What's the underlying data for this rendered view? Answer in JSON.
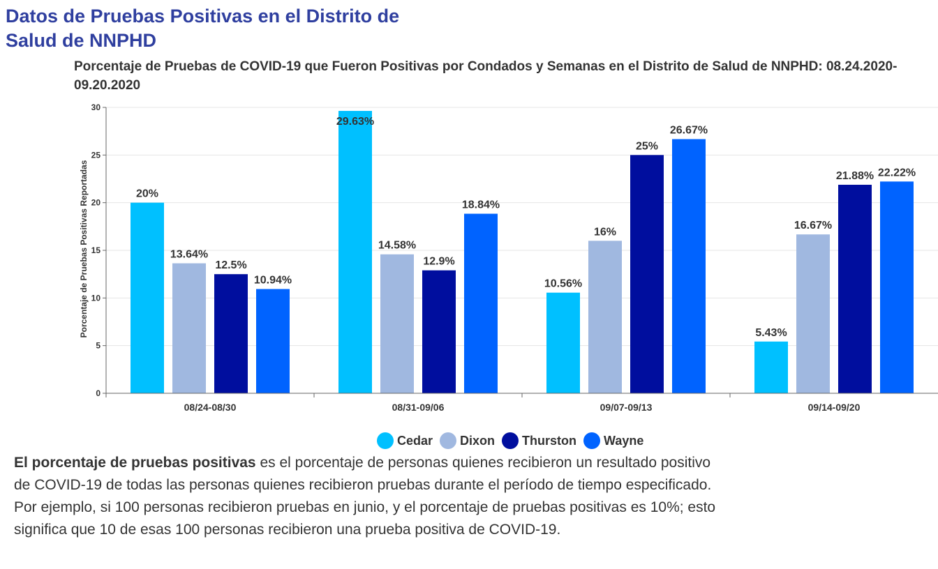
{
  "heading": "Datos de Pruebas Positivas en el Distrito de Salud de NNPHD",
  "chart_data": {
    "type": "bar",
    "title": "Porcentaje de Pruebas de COVID-19 que Fueron Positivas por Condados y Semanas en el Distrito de Salud de NNPHD: 08.24.2020-09.20.2020",
    "xlabel": "",
    "ylabel": "Porcentaje de Pruebas Positivas Reportadas",
    "ylim": [
      0,
      30
    ],
    "yticks": [
      0,
      5,
      10,
      15,
      20,
      25,
      30
    ],
    "grid": true,
    "legend_position": "bottom",
    "categories": [
      "08/24-08/30",
      "08/31-09/06",
      "09/07-09/13",
      "09/14-09/20"
    ],
    "series": [
      {
        "name": "Cedar",
        "color": "#00c0ff",
        "values": [
          20,
          29.63,
          10.56,
          5.43
        ],
        "labels": [
          "20%",
          "29.63%",
          "10.56%",
          "5.43%"
        ]
      },
      {
        "name": "Dixon",
        "color": "#a0b8e0",
        "values": [
          13.64,
          14.58,
          16,
          16.67
        ],
        "labels": [
          "13.64%",
          "14.58%",
          "16%",
          "16.67%"
        ]
      },
      {
        "name": "Thurston",
        "color": "#000e9e",
        "values": [
          12.5,
          12.9,
          25,
          21.88
        ],
        "labels": [
          "12.5%",
          "12.9%",
          "25%",
          "21.88%"
        ]
      },
      {
        "name": "Wayne",
        "color": "#0063ff",
        "values": [
          10.94,
          18.84,
          26.67,
          22.22
        ],
        "labels": [
          "10.94%",
          "18.84%",
          "26.67%",
          "22.22%"
        ]
      }
    ]
  },
  "description": {
    "bold": "El porcentaje de pruebas positivas",
    "text": " es el porcentaje de personas quienes recibieron un resultado positivo de COVID-19 de todas las personas quienes recibieron pruebas durante el período de tiempo especificado. Por ejemplo, si 100 personas recibieron pruebas en junio, y el porcentaje de pruebas positivas es 10%; esto significa que 10 de esas 100 personas recibieron una prueba positiva de COVID-19."
  }
}
